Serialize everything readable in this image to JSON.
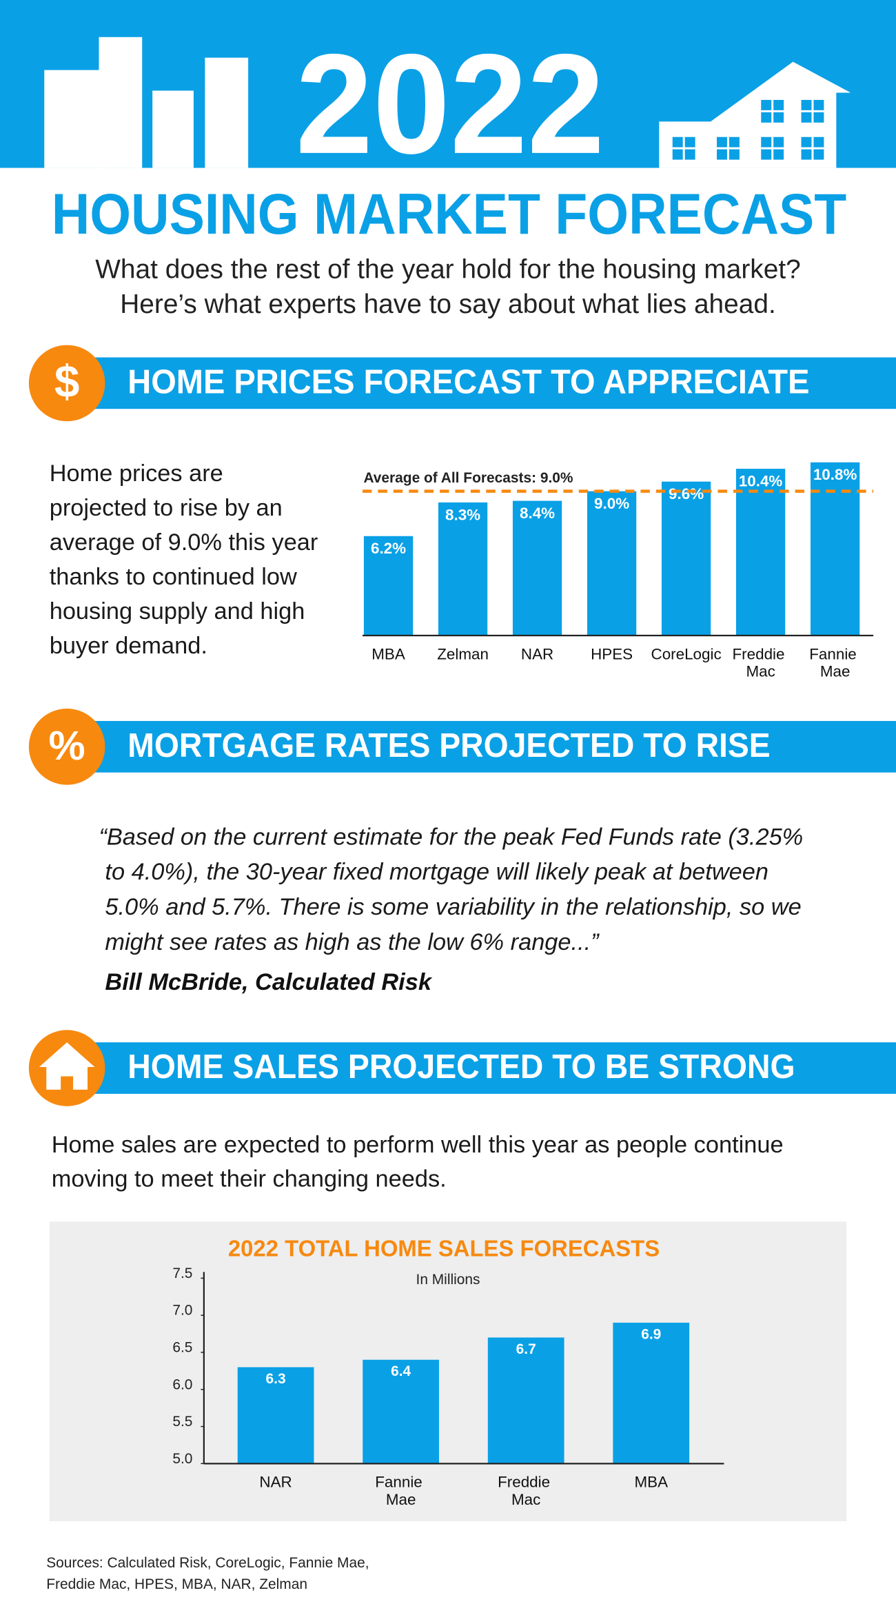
{
  "header": {
    "year": "2022",
    "title": "HOUSING MARKET FORECAST",
    "subtitle": [
      "What does the rest of the year hold for the housing market?",
      "Here’s what experts have to say about what lies ahead."
    ]
  },
  "sections": [
    {
      "icon": "$",
      "heading": "HOME PRICES FORECAST TO APPRECIATE",
      "body": [
        "Home prices are",
        "projected to rise by an",
        "average of 9.0% this year",
        "thanks to continued low",
        "housing supply and high",
        "buyer demand."
      ]
    },
    {
      "icon": "%",
      "heading": "MORTGAGE RATES PROJECTED TO RISE",
      "quote": [
        "“Based on the current estimate for the peak Fed Funds rate (3.25%",
        "to 4.0%), the 30-year fixed mortgage will likely peak at between",
        "5.0% and 5.7%. There is some variability in the relationship, so we",
        "might see rates as high as the low 6% range...”"
      ],
      "attribution": "Bill McBride, Calculated Risk"
    },
    {
      "heading": "HOME SALES PROJECTED TO BE STRONG",
      "body": [
        "Home sales are expected to perform well this year as people continue",
        "moving to meet their changing needs."
      ]
    }
  ],
  "chart_data": [
    {
      "type": "bar",
      "categories": [
        "MBA",
        "Zelman",
        "NAR",
        "HPES",
        "CoreLogic",
        "Freddie Mac",
        "Fannie Mae"
      ],
      "values": [
        6.2,
        8.3,
        8.4,
        9.0,
        9.6,
        10.4,
        10.8
      ],
      "value_labels": [
        "6.2%",
        "8.3%",
        "8.4%",
        "9.0%",
        "9.6%",
        "10.4%",
        "10.8%"
      ],
      "color": "#0aa0e6",
      "ylim": [
        0,
        11.5
      ],
      "average": {
        "label": "Average of All Forecasts: 9.0%",
        "value": 9.0,
        "color": "#f7890f"
      }
    },
    {
      "type": "bar",
      "title": "2022 TOTAL HOME SALES FORECASTS",
      "subtitle": "In Millions",
      "categories": [
        "NAR",
        "Fannie Mae",
        "Freddie Mac",
        "MBA"
      ],
      "values": [
        6.3,
        6.4,
        6.7,
        6.9
      ],
      "color": "#0aa0e6",
      "ylim": [
        5.0,
        7.5
      ],
      "yticks": [
        {
          "value": 5,
          "label": "5.0"
        },
        5.5,
        {
          "value": 6,
          "label": "6.0"
        },
        6.5,
        {
          "value": 7,
          "label": "7.0"
        },
        7.5
      ]
    }
  ],
  "sources": [
    "Sources: Calculated Risk, CoreLogic, Fannie Mae,",
    "Freddie Mac, HPES, MBA, NAR, Zelman"
  ]
}
